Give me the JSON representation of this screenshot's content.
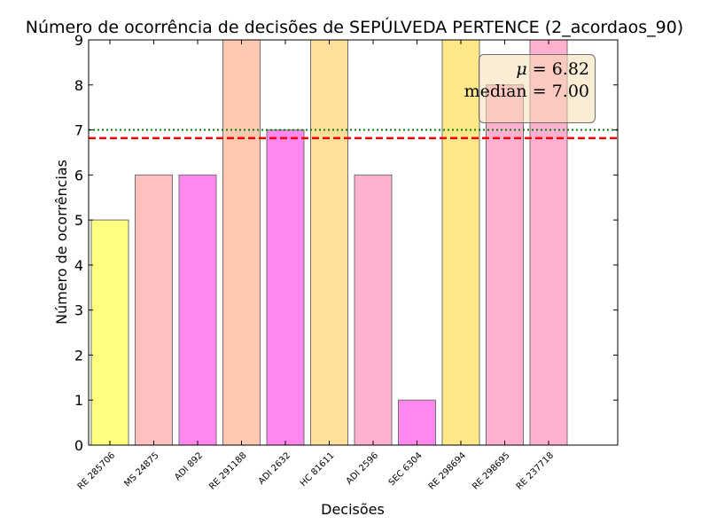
{
  "chart_data": {
    "type": "bar",
    "title": "Número de ocorrência de decisões de SEPÚLVEDA PERTENCE (2_acordaos_90)",
    "xlabel": "Decisões",
    "ylabel": "Número de ocorrências",
    "categories": [
      "RE 285706",
      "MS 24875",
      "ADI 892",
      "RE 291188",
      "ADI 2632",
      "HC 81611",
      "ADI 2596",
      "SEC 6304",
      "RE 298694",
      "RE 298695",
      "RE 237718"
    ],
    "values": [
      5,
      6,
      6,
      9,
      7,
      9,
      6,
      1,
      9,
      8,
      9
    ],
    "colors": [
      "#ffff80",
      "#ffc0c0",
      "#ff88f0",
      "#ffc8b0",
      "#ff88f0",
      "#ffe09a",
      "#ffb0d0",
      "#ff88f0",
      "#ffe88a",
      "#ffb0d0",
      "#ffb0d0"
    ],
    "ylim": [
      0,
      9
    ],
    "yticks": [
      0,
      1,
      2,
      3,
      4,
      5,
      6,
      7,
      8,
      9
    ],
    "grid": false,
    "mean": 6.82,
    "median": 7.0,
    "mean_line_color": "#ff0000",
    "median_line_color": "#008000",
    "stats": {
      "mu_label": "μ",
      "mu_value": "6.82",
      "median_label": "median",
      "median_value": "7.00",
      "placement": "top-right"
    }
  }
}
